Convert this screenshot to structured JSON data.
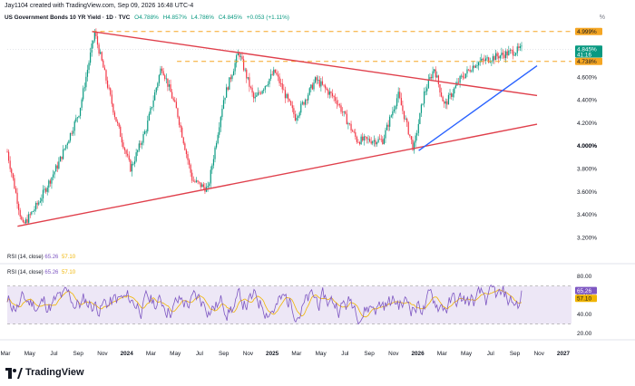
{
  "header": {
    "created_by": "Jay1104 created with TradingView.com, Sep 09, 2026 16:48 UTC-4",
    "symbol_line": "US Government Bonds 10 YR Yield · 1D · TVC",
    "ohlc": {
      "o": "O4.788%",
      "h": "H4.857%",
      "l": "L4.786%",
      "c": "C4.845%",
      "chg": "+0.053 (+1.11%)"
    },
    "pct_label": "%"
  },
  "rsi_legends": [
    {
      "label": "RSI (14, close)",
      "value": "65.26",
      "ma": "57.10"
    },
    {
      "label": "RSI (14, close)",
      "value": "65.26",
      "ma": "57.10"
    }
  ],
  "brand": {
    "name": "TradingView"
  },
  "colors": {
    "up": "#089981",
    "down": "#f23645",
    "trend_red": "#e0404c",
    "trend_blue": "#2962ff",
    "dashed": "#f5a623",
    "rsi_line": "#7e57c2",
    "rsi_ma": "#f0b400",
    "rsi_band": "#ede7f6"
  },
  "chart_data": [
    {
      "type": "candlestick",
      "title": "US Government Bonds 10 YR Yield",
      "ylabel": "%",
      "ylim": [
        3.1,
        5.1
      ],
      "x_ticks": [
        "Mar",
        "May",
        "Jul",
        "Sep",
        "Nov",
        "2024",
        "Mar",
        "May",
        "Jul",
        "Sep",
        "Nov",
        "2025",
        "Mar",
        "May",
        "Jul",
        "Sep",
        "Nov",
        "2026",
        "Mar",
        "May",
        "Jul",
        "Sep",
        "Nov",
        "2027"
      ],
      "y_ticks": [
        "4.600%",
        "4.400%",
        "4.200%",
        "4.000%",
        "3.800%",
        "3.600%",
        "3.400%",
        "3.200%"
      ],
      "y_tick_values": [
        4.6,
        4.4,
        4.2,
        4.0,
        3.8,
        3.6,
        3.4,
        3.2
      ],
      "anchors_t": [
        0,
        0.03,
        0.06,
        0.1,
        0.14,
        0.17,
        0.21,
        0.24,
        0.27,
        0.3,
        0.33,
        0.36,
        0.39,
        0.42,
        0.45,
        0.48,
        0.52,
        0.56,
        0.6,
        0.64,
        0.68,
        0.73,
        0.76,
        0.79,
        0.81,
        0.83,
        0.85,
        0.88,
        0.91,
        0.95,
        1.0
      ],
      "anchors_v": [
        3.95,
        3.3,
        3.5,
        3.85,
        4.3,
        4.99,
        4.25,
        3.8,
        4.15,
        4.7,
        4.3,
        3.7,
        3.62,
        4.4,
        4.82,
        4.4,
        4.65,
        4.25,
        4.58,
        4.4,
        4.05,
        4.05,
        4.45,
        3.97,
        4.45,
        4.68,
        4.35,
        4.58,
        4.72,
        4.78,
        4.845
      ],
      "price_labels": [
        {
          "text": "4.999%",
          "value": 4.999,
          "style": "orange"
        },
        {
          "text": "4.845%",
          "value": 4.845,
          "style": "green"
        },
        {
          "text": "41:16",
          "value": 4.8,
          "style": "green-small"
        },
        {
          "text": "4.738%",
          "value": 4.738,
          "style": "orange"
        },
        {
          "text": "4.000%",
          "value": 4.0,
          "style": "bold"
        }
      ],
      "horizontal_levels": [
        4.999,
        4.738
      ],
      "trendlines": [
        {
          "color": "red",
          "from": {
            "t": 0.165,
            "v": 4.999
          },
          "to": {
            "t": 1.03,
            "v": 4.44
          }
        },
        {
          "color": "red",
          "from": {
            "t": 0.02,
            "v": 3.3
          },
          "to": {
            "t": 1.03,
            "v": 4.19
          }
        },
        {
          "color": "blue",
          "from": {
            "t": 0.8,
            "v": 3.96
          },
          "to": {
            "t": 1.03,
            "v": 4.7
          }
        }
      ]
    },
    {
      "type": "line",
      "title": "RSI (14, close)",
      "series": [
        {
          "name": "RSI (14, close)",
          "last": 65.26
        },
        {
          "name": "MA",
          "last": 57.1
        }
      ],
      "ylim": [
        20,
        85
      ],
      "y_ticks": [
        "80.00",
        "60.00",
        "40.00",
        "20.00"
      ],
      "y_tick_values": [
        80,
        60,
        40,
        20
      ],
      "band": [
        30,
        70
      ],
      "price_labels": [
        {
          "text": "65.26",
          "value": 65.26,
          "style": "purple"
        },
        {
          "text": "57.10",
          "value": 57.1,
          "style": "yellow"
        }
      ]
    }
  ]
}
